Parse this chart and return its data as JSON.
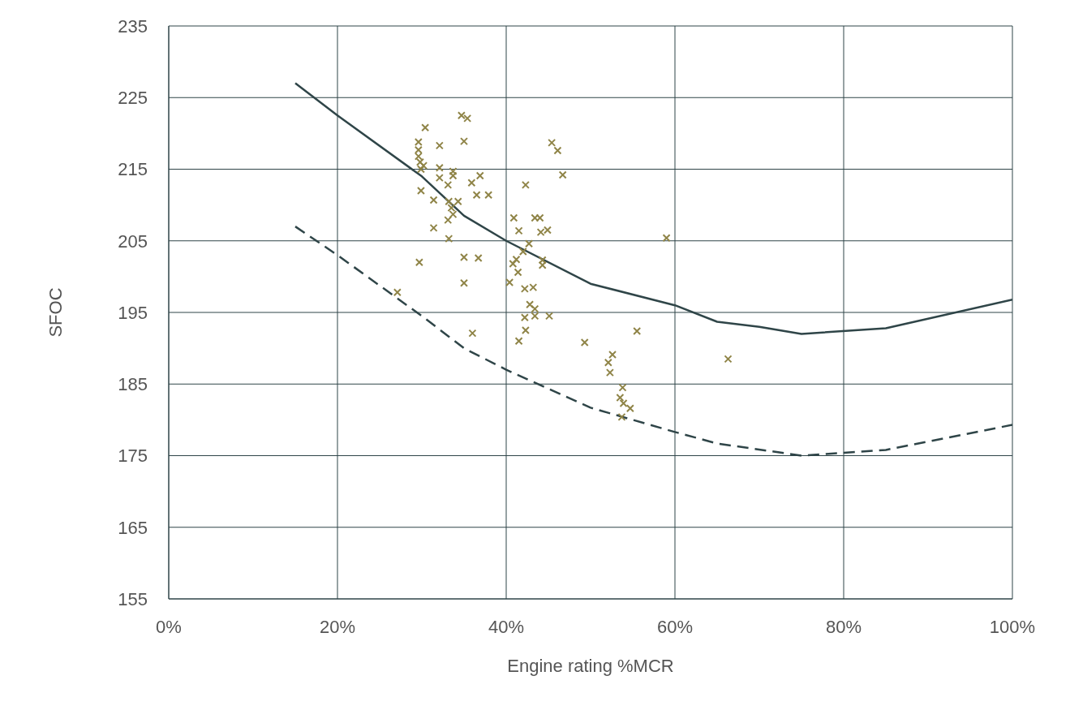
{
  "chart_data": {
    "type": "scatter",
    "xlabel": "Engine rating %MCR",
    "ylabel": "SFOC",
    "xlim": [
      0,
      100
    ],
    "xticks": [
      {
        "value": 0,
        "label": "0%"
      },
      {
        "value": 20,
        "label": "20%"
      },
      {
        "value": 40,
        "label": "40%"
      },
      {
        "value": 60,
        "label": "60%"
      },
      {
        "value": 80,
        "label": "80%"
      },
      {
        "value": 100,
        "label": "100%"
      }
    ],
    "ylim": [
      155,
      235
    ],
    "yticks": [
      155,
      165,
      175,
      185,
      195,
      205,
      215,
      225,
      235
    ],
    "grid": true,
    "legend": false,
    "series": [
      {
        "marker": "cross",
        "color": "#8f8447",
        "x": [
          27.1,
          29.6,
          29.6,
          29.6,
          29.8,
          29.9,
          30.2,
          30.4,
          29.9,
          29.7,
          31.4,
          31.4,
          32.1,
          32.1,
          32.1,
          33.1,
          33.2,
          33.1,
          33.2,
          33.5,
          33.7,
          33.7,
          33.7,
          34.3,
          34.7,
          35.4,
          35.0,
          35.0,
          35.0,
          35.9,
          36.5,
          36.9,
          36.7,
          36.0,
          37.9,
          40.9,
          40.4,
          40.8,
          41.2,
          41.4,
          41.5,
          41.5,
          42.0,
          42.3,
          42.2,
          42.2,
          42.3,
          42.7,
          42.8,
          43.2,
          43.4,
          44.0,
          43.4,
          43.4,
          44.1,
          44.3,
          44.3,
          44.9,
          45.1,
          45.4,
          46.1,
          46.7,
          49.3,
          52.1,
          52.6,
          52.3,
          55.5,
          53.8,
          53.5,
          53.9,
          54.7,
          53.7,
          59.0,
          66.3
        ],
        "values": [
          197.8,
          218.8,
          217.7,
          216.8,
          216.0,
          215.0,
          215.5,
          220.8,
          212.0,
          202.0,
          210.7,
          206.8,
          218.3,
          215.2,
          213.8,
          212.8,
          210.5,
          207.9,
          205.3,
          209.6,
          208.7,
          214.7,
          214.1,
          210.5,
          222.5,
          222.1,
          218.9,
          202.7,
          199.1,
          213.1,
          211.4,
          214.1,
          202.6,
          192.1,
          211.4,
          208.2,
          199.2,
          201.8,
          202.4,
          200.6,
          206.4,
          191.0,
          203.5,
          212.8,
          198.3,
          194.3,
          192.5,
          204.6,
          196.1,
          198.5,
          208.2,
          208.2,
          195.5,
          194.5,
          206.2,
          202.3,
          201.6,
          206.5,
          194.5,
          218.7,
          217.6,
          214.2,
          190.8,
          188.0,
          189.1,
          186.6,
          192.4,
          184.5,
          183.1,
          182.3,
          181.6,
          180.4,
          205.4,
          188.5
        ]
      },
      {
        "type": "line",
        "line_style": "solid",
        "marker": "none",
        "color": "#2f4548",
        "x": [
          15,
          20,
          30,
          35,
          40,
          50,
          60,
          65,
          70,
          75,
          85,
          100
        ],
        "values": [
          227,
          222.5,
          214,
          208.5,
          205,
          199,
          196,
          193.7,
          193,
          192,
          192.8,
          196.8
        ]
      },
      {
        "type": "line",
        "line_style": "dashed",
        "marker": "none",
        "color": "#2f4548",
        "x": [
          15,
          20,
          30,
          35,
          40,
          50,
          60,
          65,
          75,
          85,
          100
        ],
        "values": [
          207,
          203,
          194.5,
          190,
          187,
          181.7,
          178.3,
          176.7,
          175,
          175.8,
          179.3
        ]
      }
    ]
  }
}
